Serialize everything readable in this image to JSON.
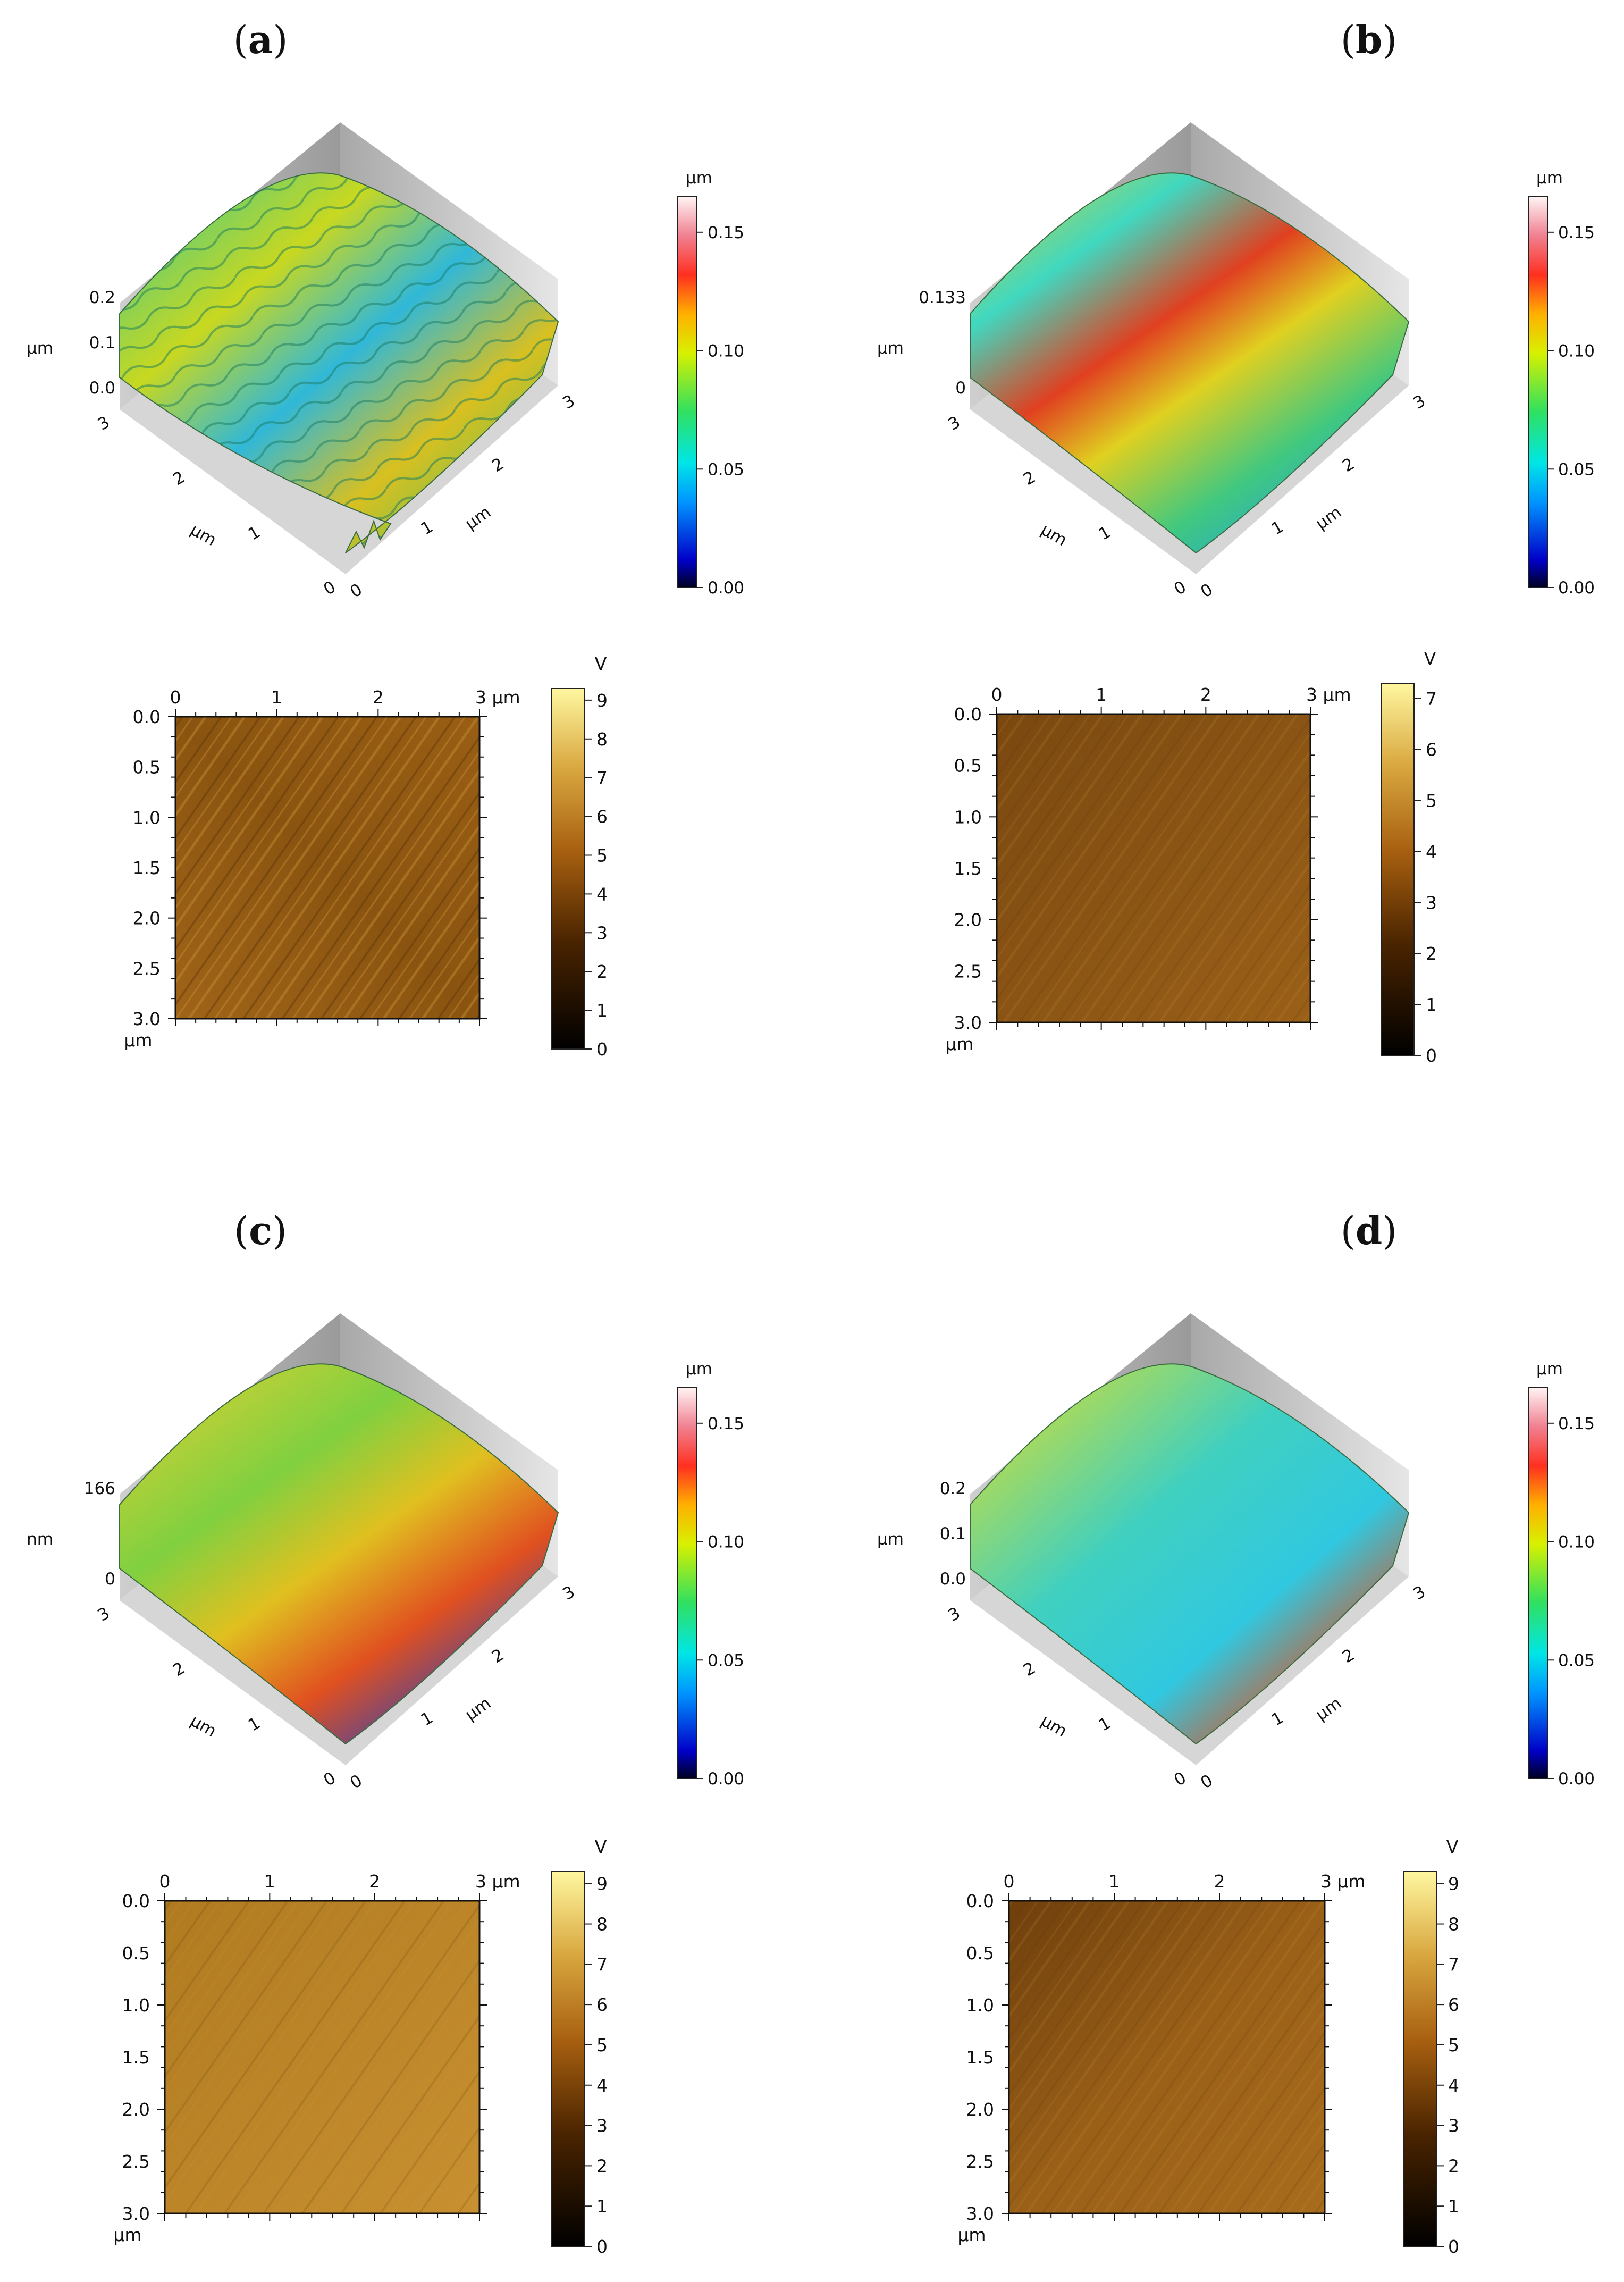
{
  "panels": [
    {
      "label": "a",
      "surface": {
        "z_ticks": [
          "0.2",
          "0.1",
          "0.0"
        ],
        "z_unit": "µm",
        "x_ticks": [
          "0",
          "1",
          "2",
          "3"
        ],
        "y_ticks": [
          "0",
          "1",
          "2",
          "3"
        ],
        "x_unit": "µm",
        "y_unit": "µm",
        "colorbar": {
          "unit": "µm",
          "ticks": [
            "0.15",
            "0.10",
            "0.05",
            "0.00"
          ]
        }
      },
      "image": {
        "x_ticks": [
          "0",
          "1",
          "2",
          "3 µm"
        ],
        "y_ticks": [
          "0.0",
          "0.5",
          "1.0",
          "1.5",
          "2.0",
          "2.5",
          "3.0"
        ],
        "y_unit": "µm",
        "colorbar": {
          "unit": "V",
          "ticks": [
            "9",
            "8",
            "7",
            "6",
            "5",
            "4",
            "3",
            "2",
            "1",
            "0"
          ]
        }
      }
    },
    {
      "label": "b",
      "surface": {
        "z_ticks": [
          "0.133",
          "0"
        ],
        "z_unit": "µm",
        "x_ticks": [
          "0",
          "1",
          "2",
          "3"
        ],
        "y_ticks": [
          "0",
          "1",
          "2",
          "3"
        ],
        "x_unit": "µm",
        "y_unit": "µm",
        "colorbar": {
          "unit": "µm",
          "ticks": [
            "0.15",
            "0.10",
            "0.05",
            "0.00"
          ]
        }
      },
      "image": {
        "x_ticks": [
          "0",
          "1",
          "2",
          "3 µm"
        ],
        "y_ticks": [
          "0.0",
          "0.5",
          "1.0",
          "1.5",
          "2.0",
          "2.5",
          "3.0"
        ],
        "y_unit": "µm",
        "colorbar": {
          "unit": "V",
          "ticks": [
            "7",
            "6",
            "5",
            "4",
            "3",
            "2",
            "1",
            "0"
          ]
        }
      }
    },
    {
      "label": "c",
      "surface": {
        "z_ticks": [
          "166",
          "0"
        ],
        "z_unit": "nm",
        "x_ticks": [
          "0",
          "1",
          "2",
          "3"
        ],
        "y_ticks": [
          "0",
          "1",
          "2",
          "3"
        ],
        "x_unit": "µm",
        "y_unit": "µm",
        "colorbar": {
          "unit": "µm",
          "ticks": [
            "0.15",
            "0.10",
            "0.05",
            "0.00"
          ]
        }
      },
      "image": {
        "x_ticks": [
          "0",
          "1",
          "2",
          "3 µm"
        ],
        "y_ticks": [
          "0.0",
          "0.5",
          "1.0",
          "1.5",
          "2.0",
          "2.5",
          "3.0"
        ],
        "y_unit": "µm",
        "colorbar": {
          "unit": "V",
          "ticks": [
            "9",
            "8",
            "7",
            "6",
            "5",
            "4",
            "3",
            "2",
            "1",
            "0"
          ]
        }
      }
    },
    {
      "label": "d",
      "surface": {
        "z_ticks": [
          "0.2",
          "0.1",
          "0.0"
        ],
        "z_unit": "µm",
        "x_ticks": [
          "0",
          "1",
          "2",
          "3"
        ],
        "y_ticks": [
          "0",
          "1",
          "2",
          "3"
        ],
        "x_unit": "µm",
        "y_unit": "µm",
        "colorbar": {
          "unit": "µm",
          "ticks": [
            "0.15",
            "0.10",
            "0.05",
            "0.00"
          ]
        }
      },
      "image": {
        "x_ticks": [
          "0",
          "1",
          "2",
          "3 µm"
        ],
        "y_ticks": [
          "0.0",
          "0.5",
          "1.0",
          "1.5",
          "2.0",
          "2.5",
          "3.0"
        ],
        "y_unit": "µm",
        "colorbar": {
          "unit": "V",
          "ticks": [
            "9",
            "8",
            "7",
            "6",
            "5",
            "4",
            "3",
            "2",
            "1",
            "0"
          ]
        }
      }
    }
  ]
}
